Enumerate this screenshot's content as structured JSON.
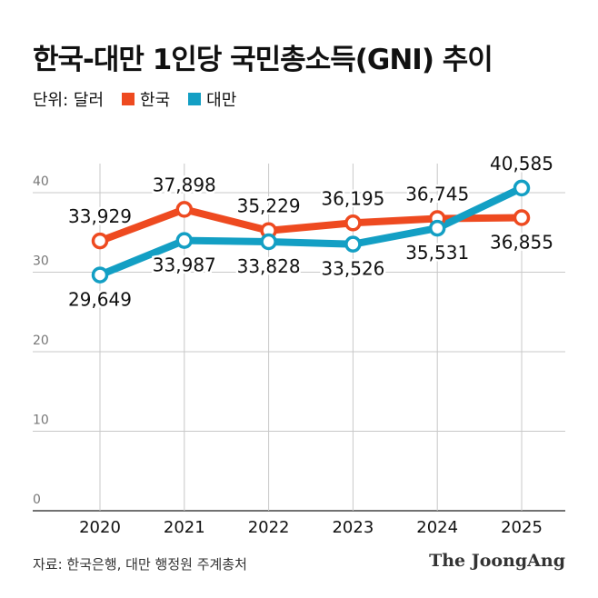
{
  "title": "한국-대만 1인당 국민총소득(GNI) 추이",
  "legend": {
    "unit": "단위: 달러",
    "korea": "한국",
    "taiwan": "대만"
  },
  "source": "자료: 한국은행, 대만 행정원 주계총처",
  "logo": "The JoongAng",
  "colors": {
    "korea": "#ee4a20",
    "taiwan": "#139fc4"
  },
  "chart_data": {
    "type": "line",
    "categories": [
      "2020",
      "2021",
      "2022",
      "2023",
      "2024",
      "2025"
    ],
    "y_ticks": [
      "0",
      "10",
      "20",
      "30",
      "40"
    ],
    "ylim": [
      0,
      45000
    ],
    "grid": true,
    "legend_position": "top-left",
    "series": [
      {
        "name": "한국",
        "values": [
          33929,
          37898,
          35229,
          36195,
          36745,
          36855
        ],
        "labels": [
          "33,929",
          "37,898",
          "35,229",
          "36,195",
          "36,745",
          "36,855"
        ]
      },
      {
        "name": "대만",
        "values": [
          29649,
          33987,
          33828,
          33526,
          35531,
          40585
        ],
        "labels": [
          "29,649",
          "33,987",
          "33,828",
          "33,526",
          "35,531",
          "40,585"
        ]
      }
    ]
  }
}
